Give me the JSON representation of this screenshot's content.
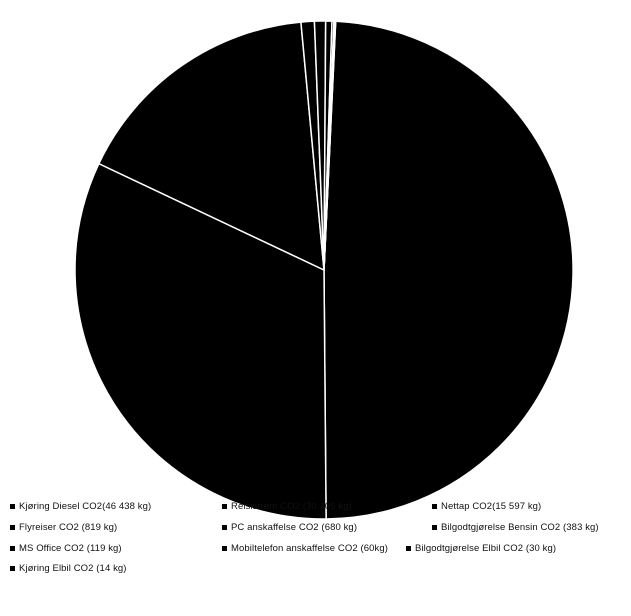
{
  "chart_data": {
    "type": "pie",
    "title": "",
    "legend_position": "bottom",
    "slice_fill": "#000000",
    "slice_separator": "#ffffff",
    "slices": [
      {
        "label": "Kjøring Diesel CO2(46 438 kg)",
        "value": 46438
      },
      {
        "label": "Reisistrøm CO2 (30 405 kg)",
        "value": 30405
      },
      {
        "label": "Nettap CO2(15 597 kg)",
        "value": 15597
      },
      {
        "label": "Flyreiser CO2 (819 kg)",
        "value": 819
      },
      {
        "label": "PC anskaffelse CO2 (680 kg)",
        "value": 680
      },
      {
        "label": "Bilgodtgjørelse Bensin CO2 (383 kg)",
        "value": 383
      },
      {
        "label": "MS Office CO2 (119 kg)",
        "value": 119
      },
      {
        "label": "Mobiltelefon anskaffelse CO2 (60kg)",
        "value": 60
      },
      {
        "label": "Bilgodtgjørelse Elbil CO2 (30 kg)",
        "value": 30
      },
      {
        "label": "Kjøring Elbil CO2 (14 kg)",
        "value": 14
      }
    ]
  },
  "legend": [
    {
      "label": "Kjøring Diesel CO2(46 438 kg)"
    },
    {
      "label": "Reisistrøm CO2 (30 405 kg)"
    },
    {
      "label": "Nettap CO2(15 597 kg)"
    },
    {
      "label": "Flyreiser CO2 (819 kg)"
    },
    {
      "label": "PC anskaffelse CO2 (680 kg)"
    },
    {
      "label": "Bilgodtgjørelse Bensin CO2 (383 kg)"
    },
    {
      "label": "MS Office CO2 (119 kg)"
    },
    {
      "label": "Mobiltelefon anskaffelse CO2 (60kg)"
    },
    {
      "label": "Bilgodtgjørelse Elbil CO2 (30 kg)"
    },
    {
      "label": "Kjøring Elbil CO2 (14 kg)"
    }
  ]
}
